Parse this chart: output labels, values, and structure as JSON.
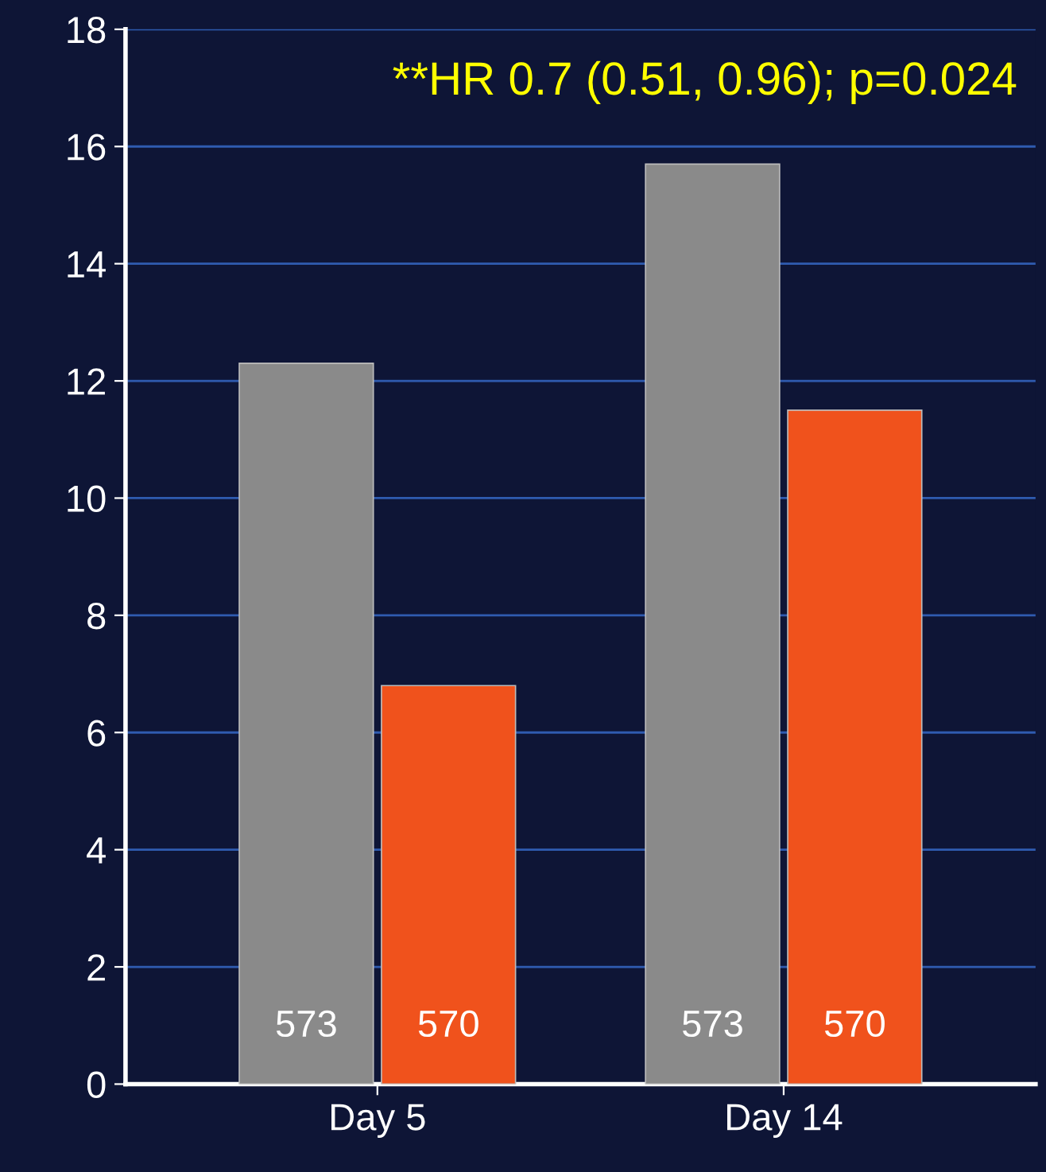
{
  "chart_data": {
    "type": "bar",
    "categories": [
      "Day 5",
      "Day 14"
    ],
    "series": [
      {
        "color": "#8a8a8a",
        "values": [
          12.3,
          15.7
        ]
      },
      {
        "color": "#f0521c",
        "values": [
          6.8,
          11.5
        ]
      }
    ],
    "ylim": [
      0,
      18
    ],
    "yticks": [
      0,
      2,
      4,
      6,
      8,
      10,
      12,
      14,
      16,
      18
    ],
    "grid": "y",
    "annotations": [
      "**HR 0.7 (0.51, 0.96); p=0.024",
      "573",
      "570",
      "573",
      "570"
    ]
  }
}
